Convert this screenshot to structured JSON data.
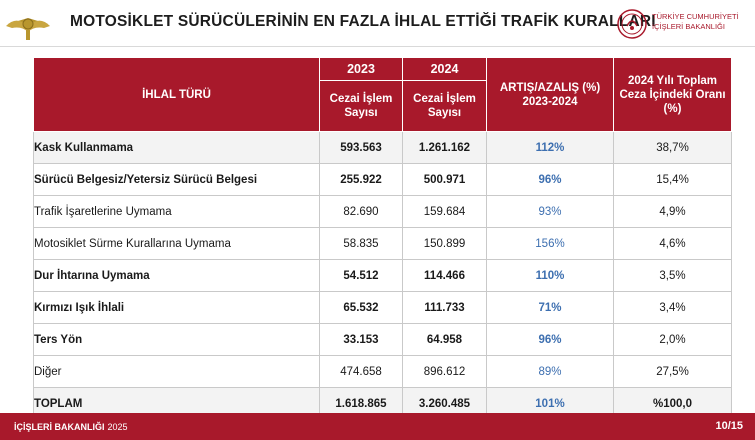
{
  "header": {
    "title": "MOTOSİKLET SÜRÜCÜLERİNİN EN FAZLA İHLAL ETTİĞİ TRAFİK KURALLARI",
    "ministry_line1": "TÜRKİYE CUMHURİYETİ",
    "ministry_line2": "İÇİŞLERİ BAKANLIĞI"
  },
  "table": {
    "col_type": "İHLAL TÜRÜ",
    "year1": "2023",
    "year2": "2024",
    "col_count": "Cezai İşlem Sayısı",
    "col_change": "ARTIŞ/AZALIŞ (%) 2023-2024",
    "col_share": "2024 Yılı Toplam Ceza İçindeki Oranı (%)",
    "rows": [
      {
        "name": "Kask Kullanmama",
        "v2023": "593.563",
        "v2024": "1.261.162",
        "change": "112%",
        "share": "38,7%",
        "bold": true
      },
      {
        "name": "Sürücü Belgesiz/Yetersiz Sürücü Belgesi",
        "v2023": "255.922",
        "v2024": "500.971",
        "change": "96%",
        "share": "15,4%",
        "bold": true
      },
      {
        "name": "Trafik İşaretlerine Uymama",
        "v2023": "82.690",
        "v2024": "159.684",
        "change": "93%",
        "share": "4,9%",
        "bold": false
      },
      {
        "name": "Motosiklet Sürme Kurallarına Uymama",
        "v2023": "58.835",
        "v2024": "150.899",
        "change": "156%",
        "share": "4,6%",
        "bold": false
      },
      {
        "name": "Dur İhtarına Uymama",
        "v2023": "54.512",
        "v2024": "114.466",
        "change": "110%",
        "share": "3,5%",
        "bold": true
      },
      {
        "name": "Kırmızı Işık İhlali",
        "v2023": "65.532",
        "v2024": "111.733",
        "change": "71%",
        "share": "3,4%",
        "bold": true
      },
      {
        "name": "Ters Yön",
        "v2023": "33.153",
        "v2024": "64.958",
        "change": "96%",
        "share": "2,0%",
        "bold": true
      },
      {
        "name": "Diğer",
        "v2023": "474.658",
        "v2024": "896.612",
        "change": "89%",
        "share": "27,5%",
        "bold": false
      }
    ],
    "total": {
      "name": "TOPLAM",
      "v2023": "1.618.865",
      "v2024": "3.260.485",
      "change": "101%",
      "share": "%100,0"
    }
  },
  "footer": {
    "label": "İÇİŞLERİ BAKANLIĞI",
    "year": "2025",
    "page": "10/15"
  },
  "colors": {
    "brand_red": "#a8192b",
    "accent_blue": "#3d6fb0",
    "gold": "#b8962e"
  }
}
